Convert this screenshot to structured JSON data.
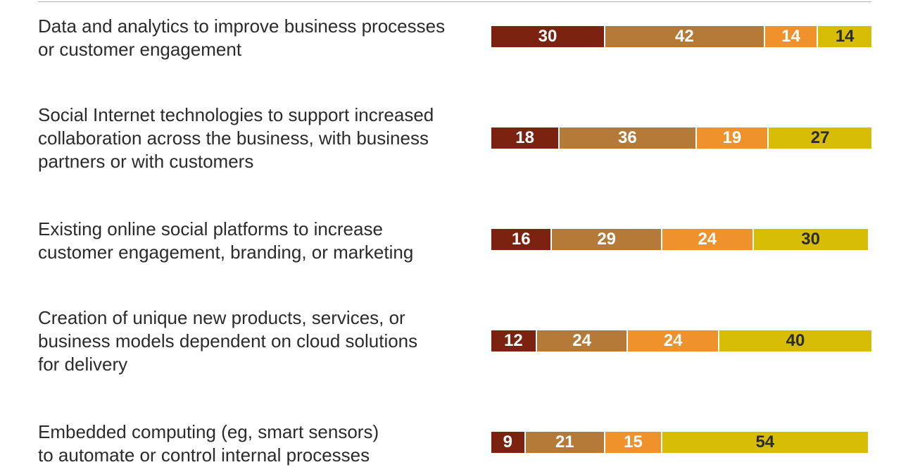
{
  "chart_data": {
    "type": "bar",
    "orientation": "horizontal",
    "stacked": true,
    "categories": [
      "Data and analytics to improve business processes\nor customer engagement",
      "Social Internet technologies to support increased\ncollaboration across the business, with business\npartners or with customers",
      "Existing online social platforms to increase\ncustomer engagement, branding, or marketing",
      "Creation of unique new products, services, or\nbusiness models dependent on cloud solutions\nfor delivery",
      "Embedded computing (eg, smart sensors)\nto automate or control internal processes"
    ],
    "series": [
      {
        "values": [
          30,
          18,
          16,
          12,
          9
        ]
      },
      {
        "values": [
          42,
          36,
          29,
          24,
          21
        ]
      },
      {
        "values": [
          14,
          19,
          24,
          24,
          15
        ]
      },
      {
        "values": [
          14,
          27,
          30,
          40,
          54
        ]
      }
    ],
    "xlim": [
      0,
      100
    ],
    "grid": false,
    "colors": [
      "#7b2310",
      "#b67a38",
      "#f0922b",
      "#d7bd06"
    ],
    "label_colors": [
      "#ffffff",
      "#ffffff",
      "#ffffff",
      "#2b2b2b"
    ]
  }
}
